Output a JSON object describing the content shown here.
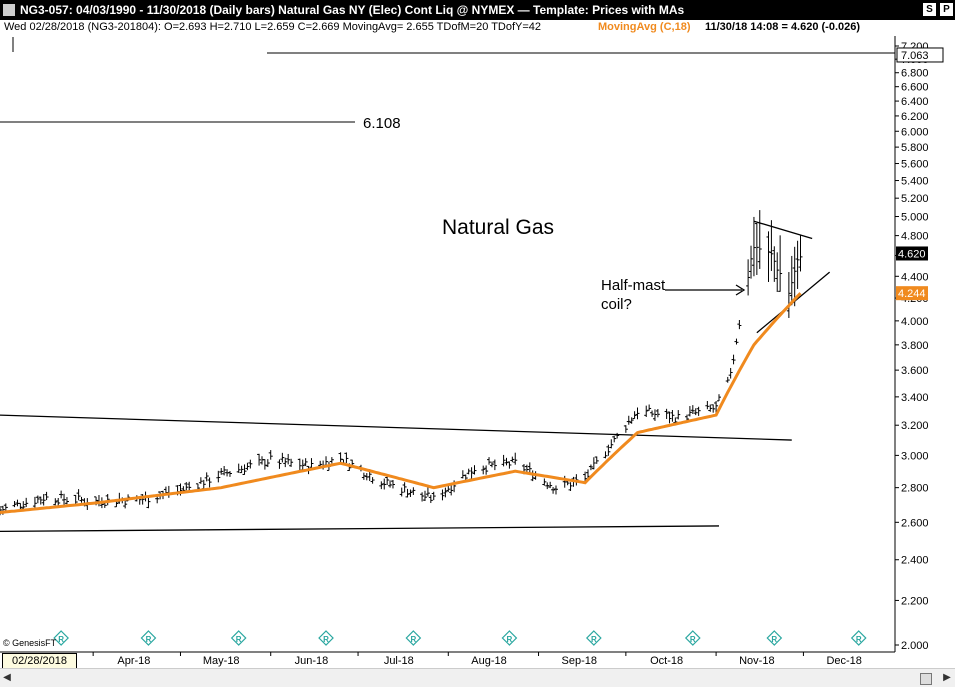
{
  "window": {
    "title": "NG3-057:  04/03/1990 - 11/30/2018  (Daily bars)   Natural Gas NY (Elec) Cont Liq @ NYMEX  —  Template: Prices with MAs",
    "btn_s": "S",
    "btn_p": "P"
  },
  "info": {
    "left": "Wed  02/28/2018 (NG3-201804):  O=2.693  H=2.710  L=2.659  C=2.669  MovingAvg= 2.655  TDofM=20  TDofY=42",
    "ma_label": "MovingAvg (C,18)",
    "last_quote": "11/30/18 14:08 = 4.620 (-0.026)"
  },
  "annotations": {
    "chart_title": "Natural Gas",
    "level": "6.108",
    "pattern_line1": "Half-mast",
    "pattern_line2": "coil?",
    "copyright": "© GenesisFT"
  },
  "colors": {
    "price_bars": "#000000",
    "moving_average": "#f08a1e",
    "ma_tag": "#f08a1e",
    "price_tag": "#000000",
    "ma_label": "#f08a1e",
    "r_icon": "#2aa7a0"
  },
  "price_axis": {
    "ticks": [
      "7.200",
      "7.000",
      "6.800",
      "6.600",
      "6.400",
      "6.200",
      "6.000",
      "5.800",
      "5.600",
      "5.400",
      "5.200",
      "5.000",
      "4.800",
      "4.600",
      "4.400",
      "4.200",
      "4.000",
      "3.800",
      "3.600",
      "3.400",
      "3.200",
      "3.000",
      "2.800",
      "2.600",
      "2.400",
      "2.200",
      "2.000"
    ],
    "tick_values": [
      7.2,
      7.0,
      6.8,
      6.6,
      6.4,
      6.2,
      6.0,
      5.8,
      5.6,
      5.4,
      5.2,
      5.0,
      4.8,
      4.6,
      4.4,
      4.2,
      4.0,
      3.8,
      3.6,
      3.4,
      3.2,
      3.0,
      2.8,
      2.6,
      2.4,
      2.2,
      2.0
    ],
    "top_tag": "7.063",
    "top_value": 7.063,
    "price_tag": "4.620",
    "price_value": 4.62,
    "ma_tag": "4.244",
    "ma_value": 4.244,
    "scale": "log"
  },
  "date_axis": {
    "current_date": "02/28/2018",
    "months": [
      "Apr-18",
      "May-18",
      "Jun-18",
      "Jul-18",
      "Aug-18",
      "Sep-18",
      "Oct-18",
      "Nov-18",
      "Dec-18"
    ]
  },
  "chart_data": {
    "type": "ohlc",
    "title": "Natural Gas",
    "ylim": [
      2.0,
      7.2
    ],
    "y_scale": "log",
    "x_range": [
      "2018-02-28",
      "2018-12-17"
    ],
    "bar_period": "daily",
    "grid": false,
    "ma_period": 18,
    "series": [
      {
        "name": "close",
        "approx_path": [
          {
            "date": "2018-02-28",
            "value": 2.67
          },
          {
            "date": "2018-03-15",
            "value": 2.74
          },
          {
            "date": "2018-04-02",
            "value": 2.72
          },
          {
            "date": "2018-04-17",
            "value": 2.73
          },
          {
            "date": "2018-05-01",
            "value": 2.78
          },
          {
            "date": "2018-05-15",
            "value": 2.88
          },
          {
            "date": "2018-06-01",
            "value": 2.97
          },
          {
            "date": "2018-06-15",
            "value": 2.93
          },
          {
            "date": "2018-06-25",
            "value": 2.98
          },
          {
            "date": "2018-07-10",
            "value": 2.83
          },
          {
            "date": "2018-07-27",
            "value": 2.73
          },
          {
            "date": "2018-08-10",
            "value": 2.92
          },
          {
            "date": "2018-08-24",
            "value": 2.95
          },
          {
            "date": "2018-09-07",
            "value": 2.8
          },
          {
            "date": "2018-09-17",
            "value": 2.85
          },
          {
            "date": "2018-09-28",
            "value": 3.12
          },
          {
            "date": "2018-10-05",
            "value": 3.3
          },
          {
            "date": "2018-10-19",
            "value": 3.25
          },
          {
            "date": "2018-11-01",
            "value": 3.32
          },
          {
            "date": "2018-11-06",
            "value": 3.55
          },
          {
            "date": "2018-11-14",
            "value": 4.7
          },
          {
            "date": "2018-11-20",
            "value": 4.6
          },
          {
            "date": "2018-11-26",
            "value": 4.25
          },
          {
            "date": "2018-11-30",
            "value": 4.62
          }
        ]
      },
      {
        "name": "MovingAvg (C,18)",
        "approx_path": [
          {
            "date": "2018-02-28",
            "value": 2.655
          },
          {
            "date": "2018-04-02",
            "value": 2.71
          },
          {
            "date": "2018-05-15",
            "value": 2.8
          },
          {
            "date": "2018-06-25",
            "value": 2.95
          },
          {
            "date": "2018-07-27",
            "value": 2.8
          },
          {
            "date": "2018-08-24",
            "value": 2.9
          },
          {
            "date": "2018-09-17",
            "value": 2.83
          },
          {
            "date": "2018-10-05",
            "value": 3.15
          },
          {
            "date": "2018-11-01",
            "value": 3.27
          },
          {
            "date": "2018-11-14",
            "value": 3.8
          },
          {
            "date": "2018-11-30",
            "value": 4.244
          }
        ]
      }
    ],
    "trendlines": [
      {
        "name": "upper-channel",
        "from": {
          "date": "2018-02-28",
          "value": 3.27
        },
        "to": {
          "date": "2018-11-27",
          "value": 3.1
        }
      },
      {
        "name": "lower-channel",
        "from": {
          "date": "2018-02-28",
          "value": 2.55
        },
        "to": {
          "date": "2018-11-02",
          "value": 2.58
        }
      },
      {
        "name": "pennant-top",
        "from": {
          "date": "2018-11-14",
          "value": 4.95
        },
        "to": {
          "date": "2018-12-04",
          "value": 4.77
        }
      },
      {
        "name": "pennant-bottom",
        "from": {
          "date": "2018-11-15",
          "value": 3.9
        },
        "to": {
          "date": "2018-12-10",
          "value": 4.44
        }
      },
      {
        "name": "level-6.108",
        "from": {
          "date": "2018-02-28",
          "value": 6.108
        },
        "to": {
          "date": "2018-07-14",
          "value": 6.108
        }
      },
      {
        "name": "level-7.063",
        "from": {
          "date": "2018-04-08",
          "value": 7.063
        },
        "to": {
          "date": "2018-12-20",
          "value": 7.063
        }
      }
    ]
  }
}
